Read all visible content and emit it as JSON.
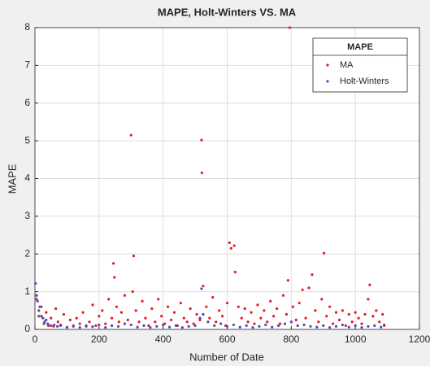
{
  "chart_data": {
    "type": "scatter",
    "title": "MAPE, Holt-Winters VS. MA",
    "x_label": "Number of Date",
    "y_label": "MAPE",
    "legend_title": "MAPE",
    "legend_position": "top-right",
    "grid": true,
    "xlim": [
      0,
      1200
    ],
    "xticks": [
      0,
      200,
      400,
      600,
      800,
      1000,
      1200
    ],
    "ylim": [
      0,
      8
    ],
    "yticks": [
      0,
      1,
      2,
      3,
      4,
      5,
      6,
      7,
      8
    ],
    "series": [
      {
        "name": "MA",
        "color": "#e8191f",
        "x": [
          5,
          12,
          20,
          28,
          35,
          42,
          50,
          58,
          65,
          72,
          80,
          90,
          100,
          110,
          120,
          130,
          140,
          150,
          160,
          170,
          180,
          190,
          200,
          210,
          220,
          230,
          240,
          245,
          248,
          255,
          262,
          270,
          280,
          290,
          300,
          305,
          308,
          315,
          325,
          335,
          345,
          355,
          365,
          375,
          385,
          395,
          405,
          415,
          425,
          435,
          445,
          455,
          465,
          475,
          485,
          495,
          505,
          515,
          520,
          521,
          525,
          535,
          545,
          555,
          565,
          575,
          585,
          595,
          600,
          607,
          612,
          622,
          625,
          635,
          645,
          655,
          665,
          675,
          685,
          695,
          705,
          715,
          725,
          735,
          745,
          755,
          765,
          775,
          785,
          790,
          795,
          805,
          815,
          825,
          835,
          845,
          855,
          865,
          875,
          885,
          895,
          902,
          910,
          920,
          930,
          940,
          950,
          960,
          970,
          980,
          990,
          1000,
          1010,
          1020,
          1030,
          1040,
          1045,
          1055,
          1065,
          1075,
          1085,
          1090
        ],
        "values": [
          0.8,
          0.35,
          0.6,
          0.15,
          0.45,
          0.1,
          0.3,
          0.08,
          0.55,
          0.2,
          0.12,
          0.4,
          0.05,
          0.25,
          0.1,
          0.3,
          0.15,
          0.45,
          0.08,
          0.2,
          0.65,
          0.1,
          0.35,
          0.5,
          0.15,
          0.8,
          0.3,
          1.75,
          1.38,
          0.6,
          0.2,
          0.45,
          0.9,
          0.25,
          5.15,
          1.0,
          1.95,
          0.5,
          0.2,
          0.75,
          0.3,
          0.1,
          0.55,
          0.2,
          0.8,
          0.35,
          0.15,
          0.6,
          0.25,
          0.45,
          0.1,
          0.7,
          0.3,
          0.2,
          0.55,
          0.15,
          0.4,
          0.25,
          5.02,
          4.15,
          1.15,
          0.6,
          0.3,
          0.85,
          0.2,
          0.5,
          0.35,
          0.1,
          0.7,
          2.3,
          2.15,
          2.22,
          1.52,
          0.6,
          0.3,
          0.55,
          0.2,
          0.45,
          0.15,
          0.65,
          0.3,
          0.5,
          0.2,
          0.75,
          0.35,
          0.55,
          0.15,
          0.9,
          0.4,
          1.3,
          8.0,
          0.6,
          0.25,
          0.7,
          1.05,
          0.3,
          1.1,
          1.45,
          0.5,
          0.2,
          0.8,
          2.02,
          0.35,
          0.6,
          0.15,
          0.45,
          0.25,
          0.5,
          0.1,
          0.4,
          0.2,
          0.45,
          0.3,
          0.15,
          0.4,
          0.8,
          1.18,
          0.35,
          0.5,
          0.2,
          0.4,
          0.1
        ]
      },
      {
        "name": "Holt-Winters",
        "color": "#4a4ab5",
        "x": [
          2,
          5,
          8,
          12,
          15,
          20,
          25,
          30,
          35,
          40,
          50,
          60,
          70,
          80,
          100,
          120,
          140,
          160,
          180,
          200,
          220,
          240,
          260,
          280,
          300,
          320,
          340,
          360,
          380,
          400,
          420,
          440,
          460,
          480,
          500,
          515,
          520,
          525,
          540,
          560,
          580,
          600,
          620,
          640,
          660,
          680,
          700,
          720,
          740,
          760,
          780,
          800,
          820,
          840,
          860,
          880,
          900,
          920,
          940,
          960,
          980,
          1000,
          1020,
          1040,
          1060,
          1080,
          1090
        ],
        "values": [
          1.22,
          0.9,
          0.75,
          0.5,
          0.6,
          0.35,
          0.3,
          0.2,
          0.25,
          0.15,
          0.1,
          0.12,
          0.08,
          0.1,
          0.06,
          0.08,
          0.05,
          0.1,
          0.07,
          0.12,
          0.05,
          0.1,
          0.08,
          0.15,
          0.12,
          0.06,
          0.1,
          0.05,
          0.08,
          0.12,
          0.06,
          0.1,
          0.05,
          0.08,
          0.1,
          0.3,
          1.08,
          0.4,
          0.2,
          0.1,
          0.15,
          0.08,
          0.12,
          0.06,
          0.1,
          0.05,
          0.08,
          0.12,
          0.06,
          0.1,
          0.15,
          0.2,
          0.1,
          0.12,
          0.08,
          0.06,
          0.1,
          0.05,
          0.08,
          0.12,
          0.06,
          0.1,
          0.05,
          0.08,
          0.1,
          0.06,
          0.12
        ]
      }
    ]
  }
}
